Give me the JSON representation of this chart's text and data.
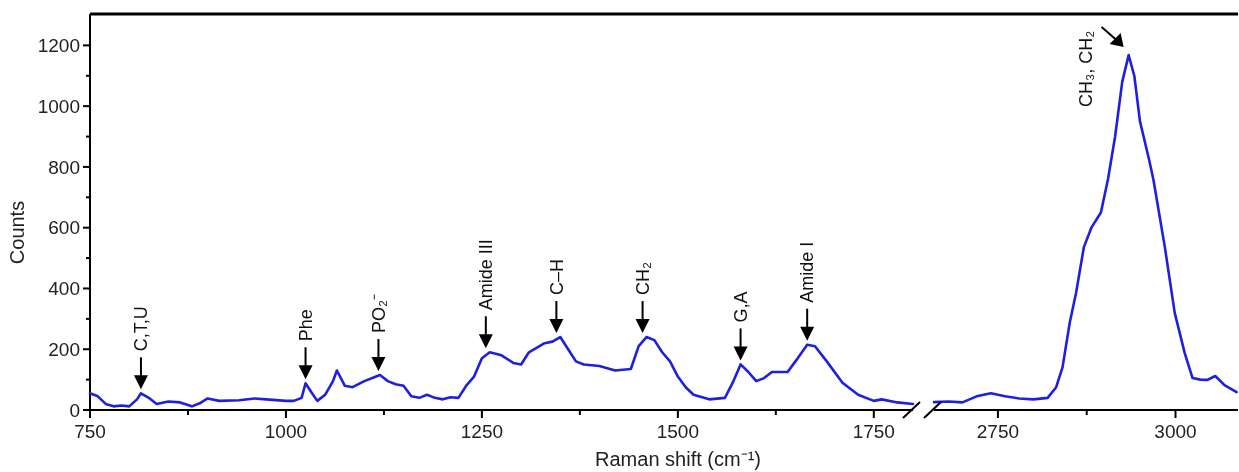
{
  "chart_data": [
    {
      "type": "line",
      "xlabel": "Raman shift (cm⁻¹)",
      "ylabel": "Counts",
      "color": "#1f1fe0",
      "xlim": [
        750,
        1800
      ],
      "xticks": [
        750,
        {
          "value": 875,
          "label": null
        },
        1000,
        {
          "value": 1125,
          "label": null
        },
        1250,
        {
          "value": 1375,
          "label": null
        },
        1500,
        {
          "value": 1625,
          "label": null
        },
        1750
      ],
      "ylim": [
        0,
        1300
      ],
      "yticks": [
        0,
        {
          "value": 100,
          "label": null
        },
        200,
        {
          "value": 300,
          "label": null
        },
        400,
        {
          "value": 500,
          "label": null
        },
        600,
        {
          "value": 700,
          "label": null
        },
        800,
        {
          "value": 900,
          "label": null
        },
        1000,
        {
          "value": 1100,
          "label": null
        },
        1200
      ],
      "x": [
        750,
        760,
        770,
        780,
        790,
        800,
        810,
        815,
        825,
        835,
        850,
        865,
        880,
        890,
        900,
        915,
        940,
        960,
        975,
        1000,
        1010,
        1020,
        1025,
        1032,
        1040,
        1050,
        1060,
        1065,
        1075,
        1085,
        1100,
        1115,
        1120,
        1130,
        1140,
        1150,
        1160,
        1170,
        1180,
        1190,
        1200,
        1210,
        1220,
        1230,
        1240,
        1250,
        1260,
        1275,
        1290,
        1300,
        1310,
        1330,
        1340,
        1350,
        1360,
        1370,
        1380,
        1400,
        1420,
        1440,
        1450,
        1460,
        1470,
        1480,
        1490,
        1500,
        1510,
        1520,
        1540,
        1560,
        1570,
        1580,
        1590,
        1600,
        1610,
        1620,
        1640,
        1650,
        1665,
        1675,
        1690,
        1710,
        1730,
        1750,
        1760,
        1780,
        1800
      ],
      "values": [
        55,
        45,
        20,
        12,
        15,
        12,
        35,
        55,
        40,
        20,
        28,
        25,
        12,
        22,
        38,
        30,
        32,
        38,
        35,
        30,
        30,
        40,
        88,
        60,
        30,
        50,
        95,
        130,
        80,
        75,
        95,
        110,
        115,
        95,
        85,
        80,
        45,
        40,
        50,
        40,
        35,
        42,
        40,
        80,
        110,
        170,
        190,
        180,
        155,
        150,
        190,
        220,
        225,
        240,
        200,
        160,
        150,
        145,
        130,
        135,
        210,
        240,
        230,
        190,
        160,
        110,
        75,
        50,
        35,
        40,
        90,
        150,
        125,
        95,
        105,
        125,
        125,
        160,
        215,
        210,
        160,
        90,
        50,
        30,
        35,
        25,
        20
      ],
      "annotations": [
        {
          "text": "C,T,U",
          "x": 815,
          "y": 55
        },
        {
          "text": "Phe",
          "x": 1025,
          "y": 88
        },
        {
          "text": "PO₂⁻",
          "x": 1118,
          "y": 115
        },
        {
          "text": "Amide III",
          "x": 1255,
          "y": 190
        },
        {
          "text": "C–H",
          "x": 1345,
          "y": 240
        },
        {
          "text": "CH₂",
          "x": 1455,
          "y": 240
        },
        {
          "text": "G,A",
          "x": 1580,
          "y": 150
        },
        {
          "text": "Amide I",
          "x": 1665,
          "y": 215
        }
      ]
    },
    {
      "type": "line",
      "color": "#1f1fe0",
      "tick_labels": "x",
      "xlim": [
        2660,
        3088
      ],
      "xticks": [
        2750,
        {
          "value": 2875,
          "label": null
        },
        3000
      ],
      "ylim": [
        0,
        1300
      ],
      "x": [
        2660,
        2680,
        2700,
        2720,
        2740,
        2760,
        2780,
        2800,
        2820,
        2832,
        2841,
        2851,
        2860,
        2871,
        2882,
        2895,
        2905,
        2915,
        2925,
        2934,
        2942,
        2950,
        2963,
        2969,
        2985,
        2999,
        3013,
        3024,
        3035,
        3045,
        3056,
        3069,
        3086
      ],
      "values": [
        26,
        28,
        25,
        45,
        55,
        45,
        38,
        35,
        40,
        75,
        141,
        286,
        385,
        536,
        602,
        650,
        760,
        900,
        1080,
        1168,
        1100,
        950,
        822,
        757,
        536,
        319,
        187,
        105,
        100,
        99,
        112,
        82,
        59
      ],
      "annotations": [
        {
          "text": "CH₃, CH₂",
          "x": 2934,
          "y": 1168
        }
      ]
    }
  ]
}
